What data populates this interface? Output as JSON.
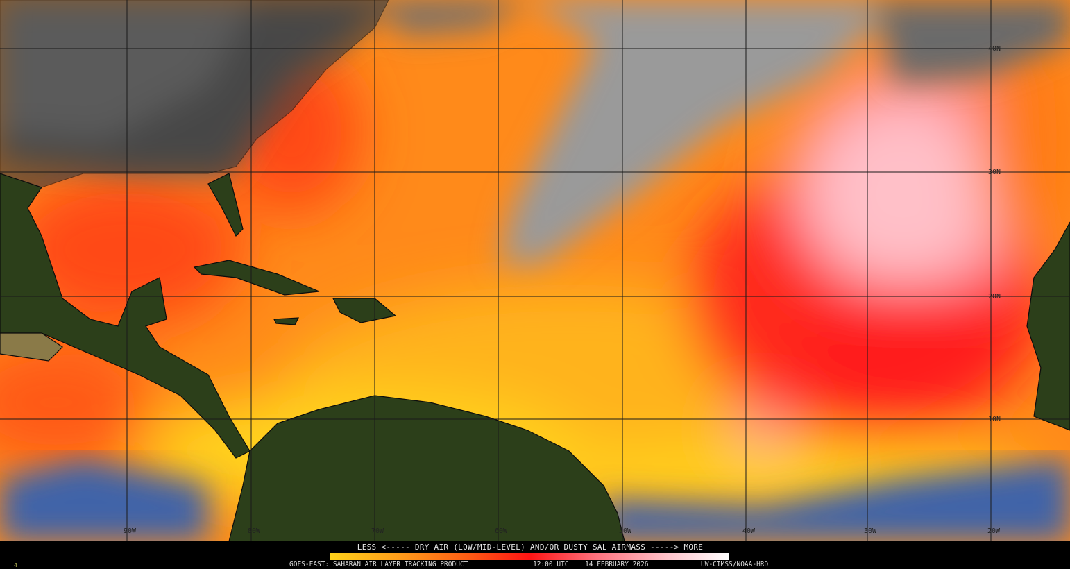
{
  "map": {
    "product": "GOES-EAST: SAHARAN AIR LAYER TRACKING PRODUCT",
    "time": "12:00 UTC",
    "date": "14 FEBRUARY 2026",
    "credit": "UW-CIMSS/NOAA-HRD",
    "corner_mark": "4",
    "legend": {
      "title": "LESS <----- DRY AIR (LOW/MID-LEVEL) AND/OR DUSTY SAL AIRMASS -----> MORE",
      "low_label": "LESS",
      "high_label": "MORE",
      "colors": [
        "#ffd21a",
        "#ff9a1a",
        "#ff5a14",
        "#ff1414",
        "#ff6e7a",
        "#ffc4cc",
        "#ffffff"
      ]
    },
    "latitude_labels": [
      "40N",
      "30N",
      "20N",
      "10N"
    ],
    "longitude_labels": [
      "90W",
      "80W",
      "70W",
      "60W",
      "50W",
      "40W",
      "30W",
      "20W"
    ],
    "colors": {
      "land": "#2c3f1a",
      "clouds": "#9a9a9a",
      "moist_ocean": "#3f64a8",
      "border": "#111111"
    }
  }
}
